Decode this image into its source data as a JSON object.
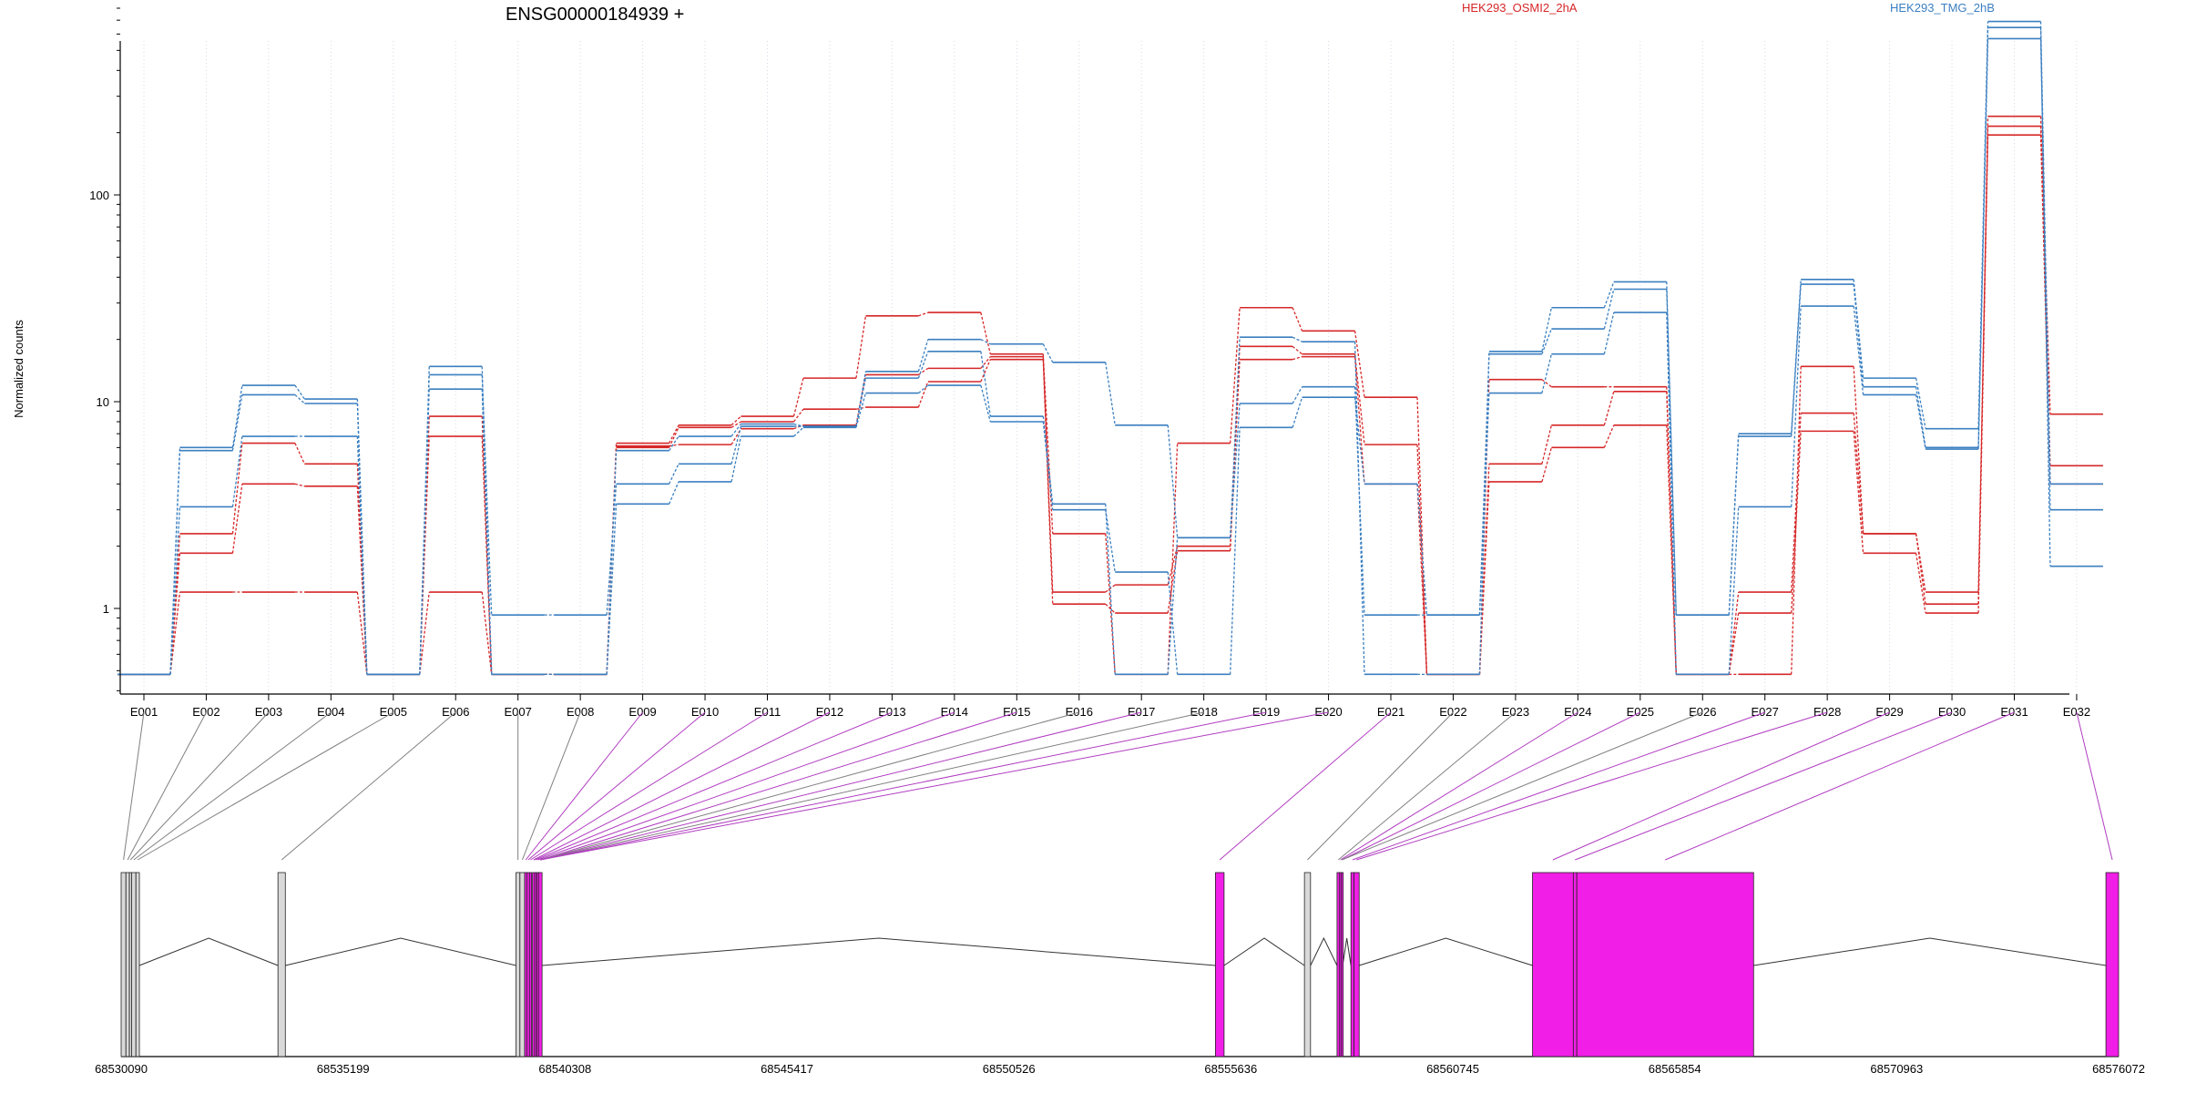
{
  "chart_data": {
    "type": "line",
    "title": "ENSG00000184939 +",
    "ylabel": "Normalized counts",
    "xlabel": "",
    "yscale": "log",
    "ylim": [
      0.4,
      900
    ],
    "yticks": [
      {
        "value": 1,
        "label": "1"
      },
      {
        "value": 10,
        "label": "10"
      },
      {
        "value": 100,
        "label": "100"
      }
    ],
    "grid": "vertical dotted lines at each exon bin",
    "categories": [
      "E001",
      "E002",
      "E003",
      "E004",
      "E005",
      "E006",
      "E007",
      "E008",
      "E009",
      "E010",
      "E011",
      "E012",
      "E013",
      "E014",
      "E015",
      "E016",
      "E017",
      "E018",
      "E019",
      "E020",
      "E021",
      "E022",
      "E023",
      "E024",
      "E025",
      "E026",
      "E027",
      "E028",
      "E029",
      "E030",
      "E031",
      "E032"
    ],
    "legend": [
      {
        "label": "HEK293_OSMI2_2hA",
        "color": "#d62728"
      },
      {
        "label": "HEK293_TMG_2hB",
        "color": "#3b7fc0"
      }
    ],
    "series": [
      {
        "group": 0,
        "values": [
          0.48,
          1.2,
          1.2,
          1.2,
          0.48,
          1.2,
          0.48,
          0.48,
          6.0,
          7.5,
          8.0,
          9.2,
          9.4,
          12.5,
          16.0,
          1.05,
          0.95,
          1.9,
          16.0,
          16.5,
          4.0,
          0.48,
          4.1,
          6.0,
          7.7,
          0.48,
          0.95,
          7.2,
          1.85,
          0.95,
          195,
          4.0
        ]
      },
      {
        "group": 0,
        "values": [
          0.48,
          1.85,
          4.0,
          3.9,
          0.48,
          6.8,
          0.48,
          0.48,
          6.1,
          6.2,
          7.4,
          7.7,
          13.5,
          14.5,
          16.5,
          1.2,
          1.3,
          2.0,
          18.5,
          17.0,
          6.2,
          0.48,
          5.0,
          7.7,
          11.2,
          0.48,
          1.2,
          8.8,
          2.3,
          1.2,
          215,
          4.9
        ]
      },
      {
        "group": 0,
        "values": [
          0.48,
          2.3,
          6.3,
          5.0,
          0.48,
          8.5,
          0.48,
          0.48,
          6.3,
          7.7,
          8.5,
          13.0,
          26.0,
          27.0,
          17.0,
          2.3,
          0.48,
          6.3,
          28.5,
          22.0,
          10.5,
          0.48,
          12.8,
          11.8,
          11.8,
          0.48,
          0.48,
          14.8,
          2.3,
          1.05,
          240,
          8.7
        ]
      },
      {
        "group": 1,
        "values": [
          0.48,
          3.1,
          6.8,
          6.8,
          0.48,
          11.5,
          0.48,
          0.48,
          3.2,
          4.1,
          6.8,
          7.5,
          11.0,
          12.0,
          8.0,
          3.0,
          1.5,
          0.48,
          7.5,
          10.5,
          4.0,
          0.93,
          11.0,
          17.0,
          27.0,
          0.48,
          3.1,
          29.0,
          10.8,
          5.9,
          570,
          3.0
        ]
      },
      {
        "group": 1,
        "values": [
          0.48,
          5.8,
          10.8,
          9.8,
          0.48,
          13.5,
          0.93,
          0.93,
          4.0,
          5.0,
          7.6,
          7.6,
          13.0,
          17.5,
          8.5,
          3.2,
          0.48,
          2.2,
          9.8,
          11.8,
          0.93,
          0.93,
          17.0,
          22.5,
          35.0,
          0.93,
          6.8,
          37.0,
          11.8,
          6.0,
          645,
          1.6
        ]
      },
      {
        "group": 1,
        "values": [
          0.48,
          6.0,
          12.0,
          10.3,
          0.48,
          14.8,
          0.48,
          0.48,
          5.8,
          6.8,
          7.8,
          7.6,
          14.0,
          20.0,
          19.0,
          15.5,
          7.7,
          2.2,
          20.5,
          19.5,
          0.48,
          0.48,
          17.5,
          28.5,
          38.0,
          0.93,
          7.0,
          39.0,
          13.0,
          7.4,
          690,
          4.0
        ]
      }
    ]
  },
  "gene_model": {
    "coordinate_labels": [
      "68530090",
      "68535199",
      "68540308",
      "68545417",
      "68550526",
      "68555636",
      "68560745",
      "68565854",
      "68570963",
      "68576072"
    ],
    "coord_range": [
      68530090,
      68576072
    ],
    "exons": [
      {
        "start": 68530090,
        "end": 68530200,
        "type": "noncoding"
      },
      {
        "start": 68530200,
        "end": 68530280,
        "type": "noncoding"
      },
      {
        "start": 68530280,
        "end": 68530330,
        "type": "noncoding"
      },
      {
        "start": 68530330,
        "end": 68530430,
        "type": "noncoding"
      },
      {
        "start": 68530430,
        "end": 68530510,
        "type": "noncoding"
      },
      {
        "start": 68533700,
        "end": 68533870,
        "type": "noncoding"
      },
      {
        "start": 68539180,
        "end": 68539270,
        "type": "noncoding"
      },
      {
        "start": 68539270,
        "end": 68539380,
        "type": "noncoding"
      },
      {
        "start": 68539380,
        "end": 68539430,
        "type": "coding"
      },
      {
        "start": 68539430,
        "end": 68539490,
        "type": "coding"
      },
      {
        "start": 68539490,
        "end": 68539540,
        "type": "coding"
      },
      {
        "start": 68539560,
        "end": 68539610,
        "type": "coding"
      },
      {
        "start": 68539610,
        "end": 68539640,
        "type": "coding"
      },
      {
        "start": 68539660,
        "end": 68539700,
        "type": "coding"
      },
      {
        "start": 68539700,
        "end": 68539780,
        "type": "coding"
      },
      {
        "start": 68555280,
        "end": 68555480,
        "type": "coding"
      },
      {
        "start": 68557330,
        "end": 68557470,
        "type": "noncoding"
      },
      {
        "start": 68558080,
        "end": 68558140,
        "type": "coding"
      },
      {
        "start": 68558140,
        "end": 68558180,
        "type": "coding"
      },
      {
        "start": 68558180,
        "end": 68558210,
        "type": "coding"
      },
      {
        "start": 68558400,
        "end": 68558470,
        "type": "coding"
      },
      {
        "start": 68558470,
        "end": 68558590,
        "type": "coding"
      },
      {
        "start": 68562580,
        "end": 68563520,
        "type": "coding"
      },
      {
        "start": 68563520,
        "end": 68563600,
        "type": "coding"
      },
      {
        "start": 68563600,
        "end": 68567670,
        "type": "coding"
      },
      {
        "start": 68575780,
        "end": 68576072,
        "type": "coding"
      }
    ],
    "links": [
      {
        "bin": 0,
        "exon": 0,
        "coding": false
      },
      {
        "bin": 1,
        "exon": 1,
        "coding": false
      },
      {
        "bin": 2,
        "exon": 2,
        "coding": false
      },
      {
        "bin": 3,
        "exon": 3,
        "coding": false
      },
      {
        "bin": 4,
        "exon": 4,
        "coding": false
      },
      {
        "bin": 5,
        "exon": 5,
        "coding": false
      },
      {
        "bin": 6,
        "exon": 6,
        "coding": false
      },
      {
        "bin": 7,
        "exon": 7,
        "coding": false
      },
      {
        "bin": 8,
        "exon": 8,
        "coding": true
      },
      {
        "bin": 9,
        "exon": 9,
        "coding": true
      },
      {
        "bin": 10,
        "exon": 10,
        "coding": true
      },
      {
        "bin": 11,
        "exon": 11,
        "coding": true
      },
      {
        "bin": 12,
        "exon": 12,
        "coding": true
      },
      {
        "bin": 13,
        "exon": 13,
        "coding": true
      },
      {
        "bin": 14,
        "exon": 14,
        "coding": true
      },
      {
        "bin": 15,
        "exon": 14,
        "coding": false
      },
      {
        "bin": 16,
        "exon": 14,
        "coding": true
      },
      {
        "bin": 17,
        "exon": 14,
        "coding": false
      },
      {
        "bin": 18,
        "exon": 14,
        "coding": true
      },
      {
        "bin": 19,
        "exon": 14,
        "coding": true
      },
      {
        "bin": 20,
        "exon": 15,
        "coding": true
      },
      {
        "bin": 21,
        "exon": 16,
        "coding": false
      },
      {
        "bin": 22,
        "exon": 17,
        "coding": false
      },
      {
        "bin": 23,
        "exon": 18,
        "coding": true
      },
      {
        "bin": 24,
        "exon": 19,
        "coding": true
      },
      {
        "bin": 25,
        "exon": 19,
        "coding": false
      },
      {
        "bin": 26,
        "exon": 20,
        "coding": true
      },
      {
        "bin": 27,
        "exon": 21,
        "coding": true
      },
      {
        "bin": 28,
        "exon": 22,
        "coding": true
      },
      {
        "bin": 29,
        "exon": 23,
        "coding": true
      },
      {
        "bin": 30,
        "exon": 24,
        "coding": true
      },
      {
        "bin": 31,
        "exon": 25,
        "coding": true
      }
    ]
  },
  "colors": {
    "group0": "#d62728",
    "group1": "#3b7fc0",
    "coding_fill": "#f01ee6",
    "noncoding_fill": "#d9d9d9",
    "link_coding": "#b03cc0",
    "link_noncoding": "#808080"
  }
}
